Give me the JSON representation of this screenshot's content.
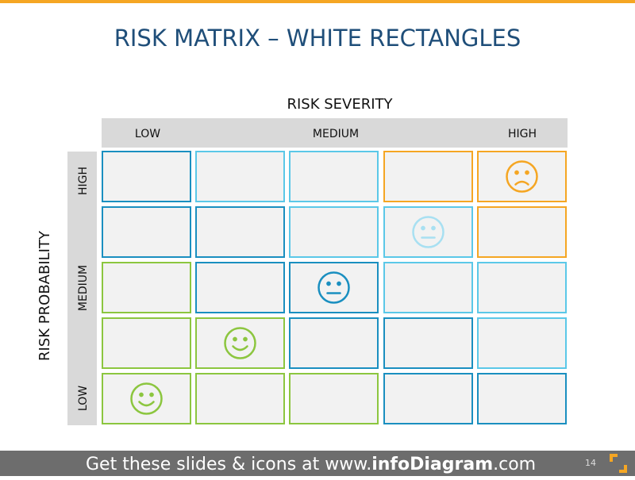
{
  "header": {
    "title": "RISK MATRIX – WHITE RECTANGLES"
  },
  "severity": {
    "label": "RISK SEVERITY",
    "levels": [
      "LOW",
      "MEDIUM",
      "HIGH"
    ]
  },
  "probability": {
    "label": "RISK PROBABILITY",
    "levels": [
      "HIGH",
      "MEDIUM",
      "LOW"
    ]
  },
  "footer": {
    "prefix": "Get these slides & icons at www.",
    "brand": "infoDiagram",
    "suffix": ".com",
    "page": "14"
  }
}
